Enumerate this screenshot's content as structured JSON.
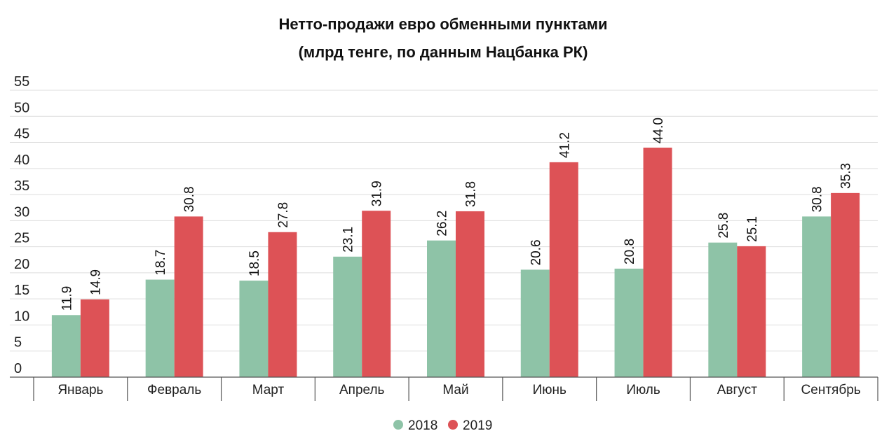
{
  "chart_data": {
    "type": "bar",
    "title": "Нетто-продажи евро обменными пунктами",
    "subtitle": "(млрд тенге, по данным Нацбанка РК)",
    "categories": [
      "Январь",
      "Февраль",
      "Март",
      "Апрель",
      "Май",
      "Июнь",
      "Июль",
      "Август",
      "Сентябрь"
    ],
    "series": [
      {
        "name": "2018",
        "color": "#8ec3a7",
        "values": [
          11.9,
          18.7,
          18.5,
          23.1,
          26.2,
          20.6,
          20.8,
          25.8,
          30.8
        ]
      },
      {
        "name": "2019",
        "color": "#dd5256",
        "values": [
          14.9,
          30.8,
          27.8,
          31.9,
          31.8,
          41.2,
          44.0,
          25.1,
          35.3
        ]
      }
    ],
    "ylim": [
      0,
      55
    ],
    "yticks": [
      0,
      5,
      10,
      15,
      20,
      25,
      30,
      35,
      40,
      45,
      50,
      55
    ],
    "grid": true,
    "legend": "bottom-center",
    "data_labels": true
  }
}
